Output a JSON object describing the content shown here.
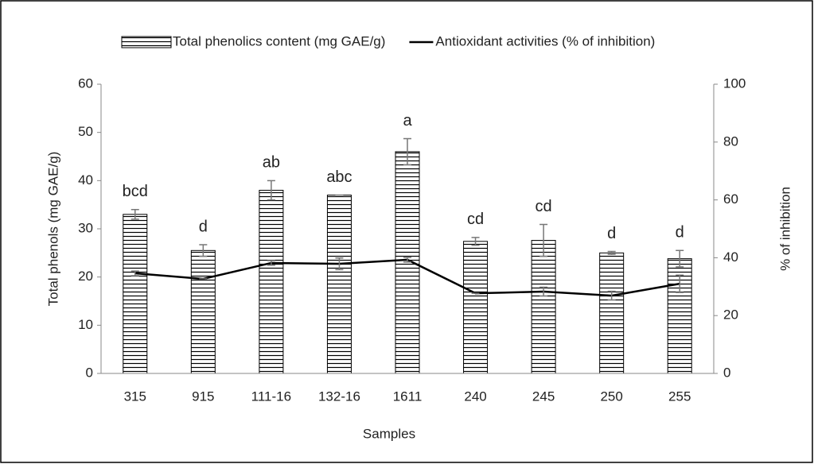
{
  "chart_data": {
    "type": "bar_line",
    "xlabel": "Samples",
    "ylabel": "Total phenols (mg GAE/g)",
    "y2label": "% of inhibition",
    "categories": [
      "315",
      "915",
      "111-16",
      "132-16",
      "1611",
      "240",
      "245",
      "250",
      "255"
    ],
    "annotations": [
      "bcd",
      "d",
      "ab",
      "abc",
      "a",
      "cd",
      "cd",
      "d",
      "d"
    ],
    "series": [
      {
        "name": "Total phenolics content (mg GAE/g)",
        "type": "bar",
        "color": "#000000",
        "values": [
          33,
          25.5,
          38,
          37,
          46,
          27.4,
          27.6,
          25,
          23.8
        ],
        "errors": [
          1,
          1.2,
          2,
          0,
          2.7,
          0.8,
          3.3,
          0.3,
          1.7
        ]
      },
      {
        "name": "Antioxidant activities (% of inhibition)",
        "type": "line",
        "axis": "y2",
        "color": "#000000",
        "values": [
          34.6,
          32.7,
          38.2,
          37.9,
          39.3,
          27.7,
          28.3,
          26.9,
          31
        ],
        "errors": [
          0.8,
          0,
          0.8,
          2,
          0.8,
          0,
          1.5,
          1.5,
          3
        ]
      }
    ],
    "ylim": [
      0,
      60
    ],
    "yticks": [
      0,
      10,
      20,
      30,
      40,
      50,
      60
    ],
    "y2lim": [
      0,
      100
    ],
    "y2ticks": [
      0,
      20,
      40,
      60,
      80,
      100
    ],
    "legend": "top"
  }
}
